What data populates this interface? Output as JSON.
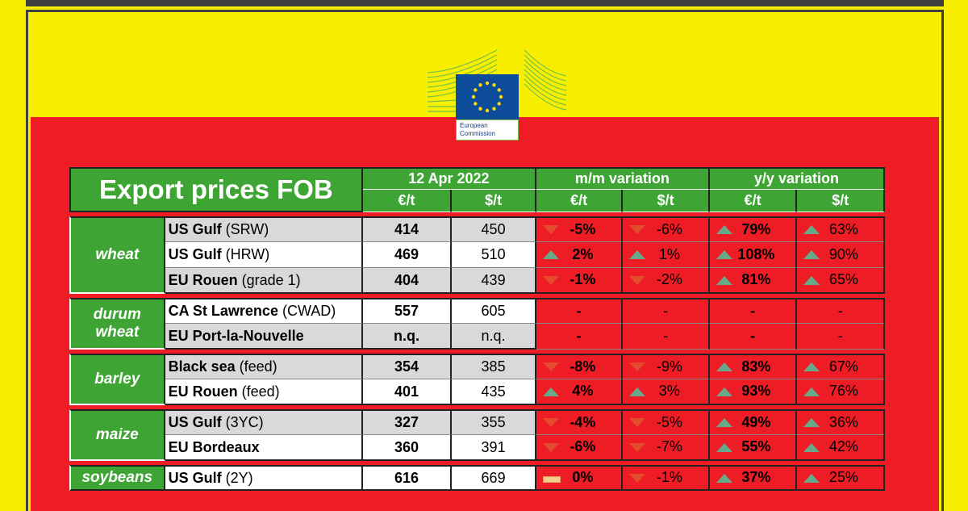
{
  "logo": {
    "line1": "European",
    "line2": "Commission"
  },
  "header": {
    "title": "Export prices FOB",
    "date": "12 Apr 2022",
    "mm": "m/m variation",
    "yy": "y/y variation",
    "eur": "€/t",
    "usd": "$/t"
  },
  "groups": [
    {
      "category": "wheat",
      "rows": [
        {
          "loc": "US Gulf",
          "note": " (SRW)",
          "eur": "414",
          "usd": "450",
          "mm_eur": "-5%",
          "mm_eur_dir": "down",
          "mm_usd": "-6%",
          "mm_usd_dir": "down",
          "yy_eur": "79%",
          "yy_eur_dir": "up",
          "yy_usd": "63%",
          "yy_usd_dir": "up"
        },
        {
          "loc": "US Gulf",
          "note": " (HRW)",
          "eur": "469",
          "usd": "510",
          "mm_eur": "2%",
          "mm_eur_dir": "up",
          "mm_usd": "1%",
          "mm_usd_dir": "up",
          "yy_eur": "108%",
          "yy_eur_dir": "up",
          "yy_usd": "90%",
          "yy_usd_dir": "up"
        },
        {
          "loc": "EU Rouen",
          "note": " (grade 1)",
          "eur": "404",
          "usd": "439",
          "mm_eur": "-1%",
          "mm_eur_dir": "down",
          "mm_usd": "-2%",
          "mm_usd_dir": "down",
          "yy_eur": "81%",
          "yy_eur_dir": "up",
          "yy_usd": "65%",
          "yy_usd_dir": "up"
        }
      ]
    },
    {
      "category": "durum wheat",
      "rows": [
        {
          "loc": "CA St Lawrence",
          "note": " (CWAD)",
          "eur": "557",
          "usd": "605",
          "mm_eur": "-",
          "mm_eur_dir": "none",
          "mm_usd": "-",
          "mm_usd_dir": "none",
          "yy_eur": "-",
          "yy_eur_dir": "none",
          "yy_usd": "-",
          "yy_usd_dir": "none"
        },
        {
          "loc": "EU Port-la-Nouvelle",
          "note": "",
          "eur": "n.q.",
          "usd": "n.q.",
          "mm_eur": "-",
          "mm_eur_dir": "none",
          "mm_usd": "-",
          "mm_usd_dir": "none",
          "yy_eur": "-",
          "yy_eur_dir": "none",
          "yy_usd": "-",
          "yy_usd_dir": "none"
        }
      ]
    },
    {
      "category": "barley",
      "rows": [
        {
          "loc": "Black sea",
          "note": " (feed)",
          "eur": "354",
          "usd": "385",
          "mm_eur": "-8%",
          "mm_eur_dir": "down",
          "mm_usd": "-9%",
          "mm_usd_dir": "down",
          "yy_eur": "83%",
          "yy_eur_dir": "up",
          "yy_usd": "67%",
          "yy_usd_dir": "up"
        },
        {
          "loc": "EU Rouen",
          "note": " (feed)",
          "eur": "401",
          "usd": "435",
          "mm_eur": "4%",
          "mm_eur_dir": "up",
          "mm_usd": "3%",
          "mm_usd_dir": "up",
          "yy_eur": "93%",
          "yy_eur_dir": "up",
          "yy_usd": "76%",
          "yy_usd_dir": "up"
        }
      ]
    },
    {
      "category": "maize",
      "rows": [
        {
          "loc": "US Gulf",
          "note": " (3YC)",
          "eur": "327",
          "usd": "355",
          "mm_eur": "-4%",
          "mm_eur_dir": "down",
          "mm_usd": "-5%",
          "mm_usd_dir": "down",
          "yy_eur": "49%",
          "yy_eur_dir": "up",
          "yy_usd": "36%",
          "yy_usd_dir": "up"
        },
        {
          "loc": "EU Bordeaux",
          "note": "",
          "eur": "360",
          "usd": "391",
          "mm_eur": "-6%",
          "mm_eur_dir": "down",
          "mm_usd": "-7%",
          "mm_usd_dir": "down",
          "yy_eur": "55%",
          "yy_eur_dir": "up",
          "yy_usd": "42%",
          "yy_usd_dir": "up"
        }
      ]
    },
    {
      "category": "soybeans",
      "rows": [
        {
          "loc": "US Gulf",
          "note": " (2Y)",
          "eur": "616",
          "usd": "669",
          "mm_eur": "0%",
          "mm_eur_dir": "flat",
          "mm_usd": "-1%",
          "mm_usd_dir": "down",
          "yy_eur": "37%",
          "yy_eur_dir": "up",
          "yy_usd": "25%",
          "yy_usd_dir": "up"
        }
      ]
    }
  ],
  "colors": {
    "green": "#3ea535",
    "red_bg": "#ee1c25",
    "yellow_bg": "#f8ef00",
    "down": "#e34c2c",
    "up": "#68a989"
  }
}
